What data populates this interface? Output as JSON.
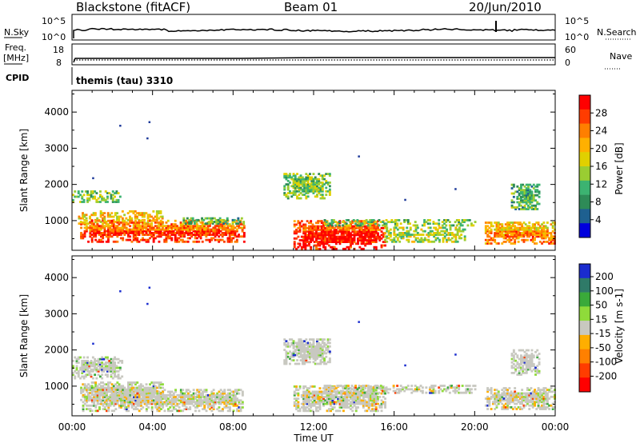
{
  "header": {
    "station": "Blackstone (fitACF)",
    "beam": "Beam 01",
    "date": "20/Jun/2010"
  },
  "top_panels": {
    "nsky_label": "N.Sky",
    "nsky_ticks": [
      "10^5",
      "10^0"
    ],
    "nsearch_label": "N.Search",
    "nsearch_ticks": [
      "10^5",
      "10^0"
    ],
    "freq_label_line1": "Freq.",
    "freq_label_line2": "[MHz]",
    "freq_ticks": [
      "18",
      "8"
    ],
    "nave_label": "Nave",
    "nave_ticks": [
      "60",
      "0"
    ],
    "cpid_label": "CPID",
    "cpid_text": "themis (tau) 3310"
  },
  "colorbars": {
    "power": {
      "title": "Power [dB]",
      "ticks": [
        "28",
        "24",
        "20",
        "16",
        "12",
        "8",
        "4"
      ],
      "colors": [
        "#ff0000",
        "#ff3c00",
        "#ff7f00",
        "#ffb000",
        "#e0d000",
        "#9acd32",
        "#3cb371",
        "#2e8b57",
        "#1e6090",
        "#0000dd"
      ]
    },
    "velocity": {
      "title": "Velocity [m s-1]",
      "ticks": [
        "200",
        "100",
        "50",
        "15",
        "-15",
        "-50",
        "-100",
        "-200"
      ],
      "colors": [
        "#1a2ccf",
        "#2f7a68",
        "#3aaa3a",
        "#8fdb3a",
        "#c8c8c0",
        "#ffae00",
        "#ff8000",
        "#ff3c00",
        "#ff0000"
      ]
    }
  },
  "chart_data": [
    {
      "type": "heatmap",
      "title": "Power",
      "ylabel": "Slant Range [km]",
      "ylim": [
        180,
        4600
      ],
      "yticks": [
        "1000",
        "2000",
        "3000",
        "4000"
      ],
      "xlim": [
        "00:00",
        "24:00"
      ],
      "xticks": [
        "00:00",
        "04:00",
        "08:00",
        "12:00",
        "16:00",
        "20:00",
        "00:00"
      ],
      "bands": [
        {
          "t": [
            0.0,
            2.5
          ],
          "r": [
            1500,
            1800
          ],
          "v": 12
        },
        {
          "t": [
            0.3,
            4.5
          ],
          "r": [
            900,
            1250
          ],
          "v": 18
        },
        {
          "t": [
            0.4,
            8.5
          ],
          "r": [
            400,
            1000
          ],
          "v": 22
        },
        {
          "t": [
            5.5,
            8.5
          ],
          "r": [
            900,
            1050
          ],
          "v": 10
        },
        {
          "t": [
            10.5,
            12.8
          ],
          "r": [
            1600,
            2300
          ],
          "v": 12
        },
        {
          "t": [
            11.0,
            15.5
          ],
          "r": [
            200,
            1000
          ],
          "v": 24
        },
        {
          "t": [
            12.5,
            20.0
          ],
          "r": [
            850,
            1000
          ],
          "v": 12
        },
        {
          "t": [
            15.5,
            19.5
          ],
          "r": [
            400,
            800
          ],
          "v": 14
        },
        {
          "t": [
            20.5,
            24.0
          ],
          "r": [
            350,
            950
          ],
          "v": 18
        },
        {
          "t": [
            21.8,
            23.2
          ],
          "r": [
            1300,
            2000
          ],
          "v": 10
        }
      ]
    },
    {
      "type": "heatmap",
      "title": "Velocity",
      "ylabel": "Slant Range [km]",
      "ylim": [
        180,
        4600
      ],
      "yticks": [
        "1000",
        "2000",
        "3000",
        "4000"
      ],
      "xlabel": "Time UT",
      "xticks": [
        "00:00",
        "04:00",
        "08:00",
        "12:00",
        "16:00",
        "20:00",
        "00:00"
      ],
      "bands": [
        {
          "t": [
            0.0,
            2.5
          ],
          "r": [
            1200,
            1800
          ],
          "v": 0
        },
        {
          "t": [
            0.4,
            4.5
          ],
          "r": [
            600,
            1100
          ],
          "v": -20
        },
        {
          "t": [
            0.5,
            8.5
          ],
          "r": [
            300,
            900
          ],
          "v": 0
        },
        {
          "t": [
            10.5,
            12.8
          ],
          "r": [
            1600,
            2300
          ],
          "v": 0
        },
        {
          "t": [
            11.0,
            15.5
          ],
          "r": [
            300,
            1000
          ],
          "v": 0
        },
        {
          "t": [
            12.5,
            20.0
          ],
          "r": [
            800,
            1000
          ],
          "v": 0
        },
        {
          "t": [
            20.5,
            24.0
          ],
          "r": [
            350,
            950
          ],
          "v": 0
        },
        {
          "t": [
            21.8,
            23.2
          ],
          "r": [
            1300,
            2000
          ],
          "v": 0
        }
      ]
    }
  ]
}
